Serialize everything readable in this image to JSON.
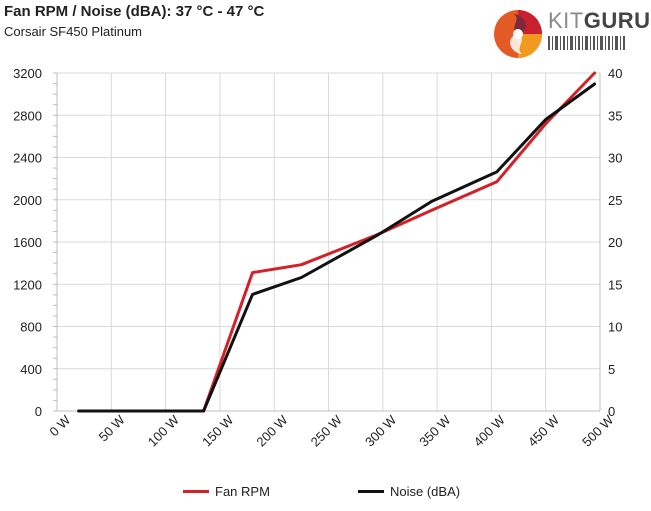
{
  "header": {
    "title": "Fan RPM / Noise (dBA): 37 °C - 47 °C",
    "subtitle": "Corsair SF450 Platinum"
  },
  "brand": {
    "kit": "KIT",
    "guru": "GURU",
    "logo_colors": [
      "#c8202f",
      "#e35a24",
      "#f29a1f",
      "#7b2a3b"
    ]
  },
  "colors": {
    "fan": "#d42028",
    "noise": "#111111",
    "grid": "#d9d9d9",
    "axis": "#bfbfbf"
  },
  "chart_data": {
    "type": "line",
    "x": [
      20,
      70,
      135,
      180,
      225,
      295,
      345,
      405,
      450,
      495
    ],
    "x_unit": "W",
    "xlim": [
      0,
      500
    ],
    "x_ticks": [
      "0 W",
      "50 W",
      "100 W",
      "150 W",
      "200 W",
      "250 W",
      "300 W",
      "350 W",
      "400 W",
      "450 W",
      "500 W"
    ],
    "x_tick_values": [
      0,
      50,
      100,
      150,
      200,
      250,
      300,
      350,
      400,
      450,
      500
    ],
    "y_left": {
      "lim": [
        0,
        3200
      ],
      "ticks": [
        "0",
        "400",
        "800",
        "1200",
        "1600",
        "2000",
        "2400",
        "2800",
        "3200"
      ],
      "tick_values": [
        0,
        400,
        800,
        1200,
        1600,
        2000,
        2400,
        2800,
        3200
      ]
    },
    "y_right": {
      "lim": [
        0,
        40
      ],
      "ticks": [
        "0",
        "5",
        "10",
        "15",
        "20",
        "25",
        "30",
        "35",
        "40"
      ],
      "tick_values": [
        0,
        5,
        10,
        15,
        20,
        25,
        30,
        35,
        40
      ]
    },
    "series": [
      {
        "name": "Fan RPM",
        "axis": "left",
        "values": [
          0,
          0,
          0,
          1310,
          1385,
          1670,
          1900,
          2170,
          2720,
          3200
        ]
      },
      {
        "name": "Noise (dBA)",
        "axis": "right",
        "values": [
          0,
          0,
          0,
          13.8,
          15.8,
          20.8,
          24.8,
          28.3,
          34.5,
          38.7
        ]
      }
    ],
    "legend": {
      "placement": "bottom",
      "items": [
        "Fan RPM",
        "Noise (dBA)"
      ]
    },
    "grid": true
  }
}
